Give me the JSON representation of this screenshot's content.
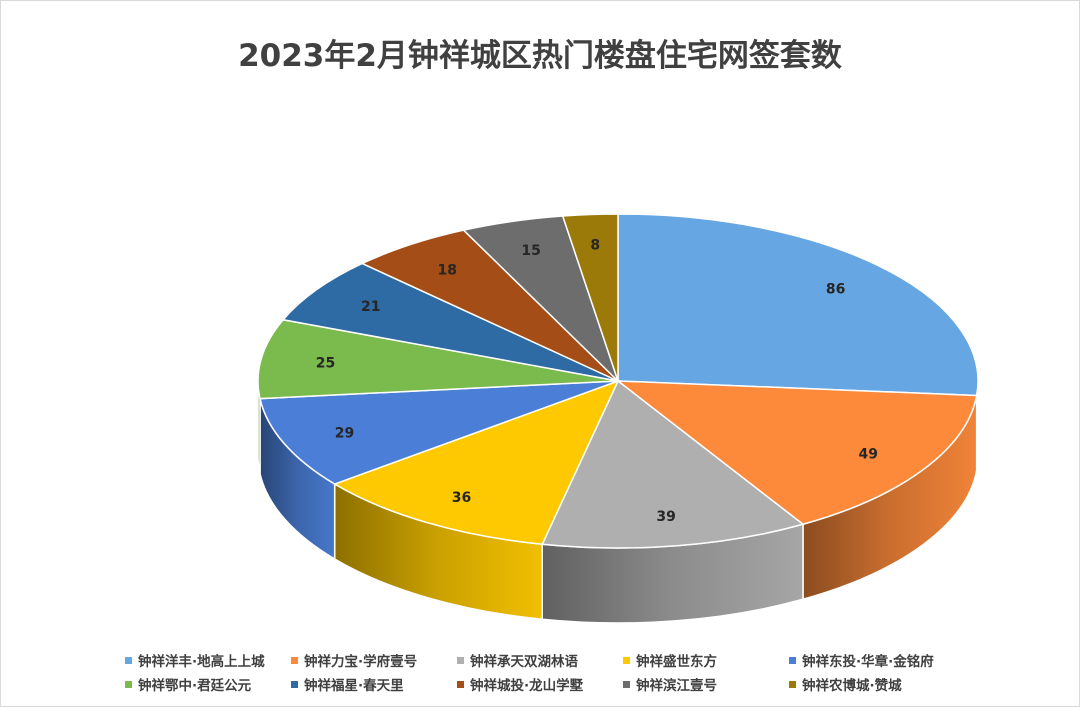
{
  "chart_data": {
    "type": "pie",
    "title": "2023年2月钟祥城区热门楼盘住宅网签套数",
    "categories": [
      "钟祥洋丰·地高上上城",
      "钟祥力宝·学府壹号",
      "钟祥承天双湖林语",
      "钟祥盛世东方",
      "钟祥东投·华章·金铭府",
      "钟祥鄂中·君廷公元",
      "钟祥福星·春天里",
      "钟祥城投·龙山学墅",
      "钟祥滨江壹号",
      "钟祥农博城·赞城"
    ],
    "values": [
      86,
      49,
      39,
      36,
      29,
      25,
      21,
      18,
      15,
      8
    ],
    "colors": [
      "#66a6e2",
      "#fd8a3b",
      "#afafaf",
      "#fec901",
      "#4b7ed6",
      "#7bba4d",
      "#2e6aa4",
      "#a54d17",
      "#6d6d6d",
      "#9c7a0a"
    ],
    "show_data_labels": true,
    "legend_position": "bottom",
    "style": "3d-pie"
  }
}
